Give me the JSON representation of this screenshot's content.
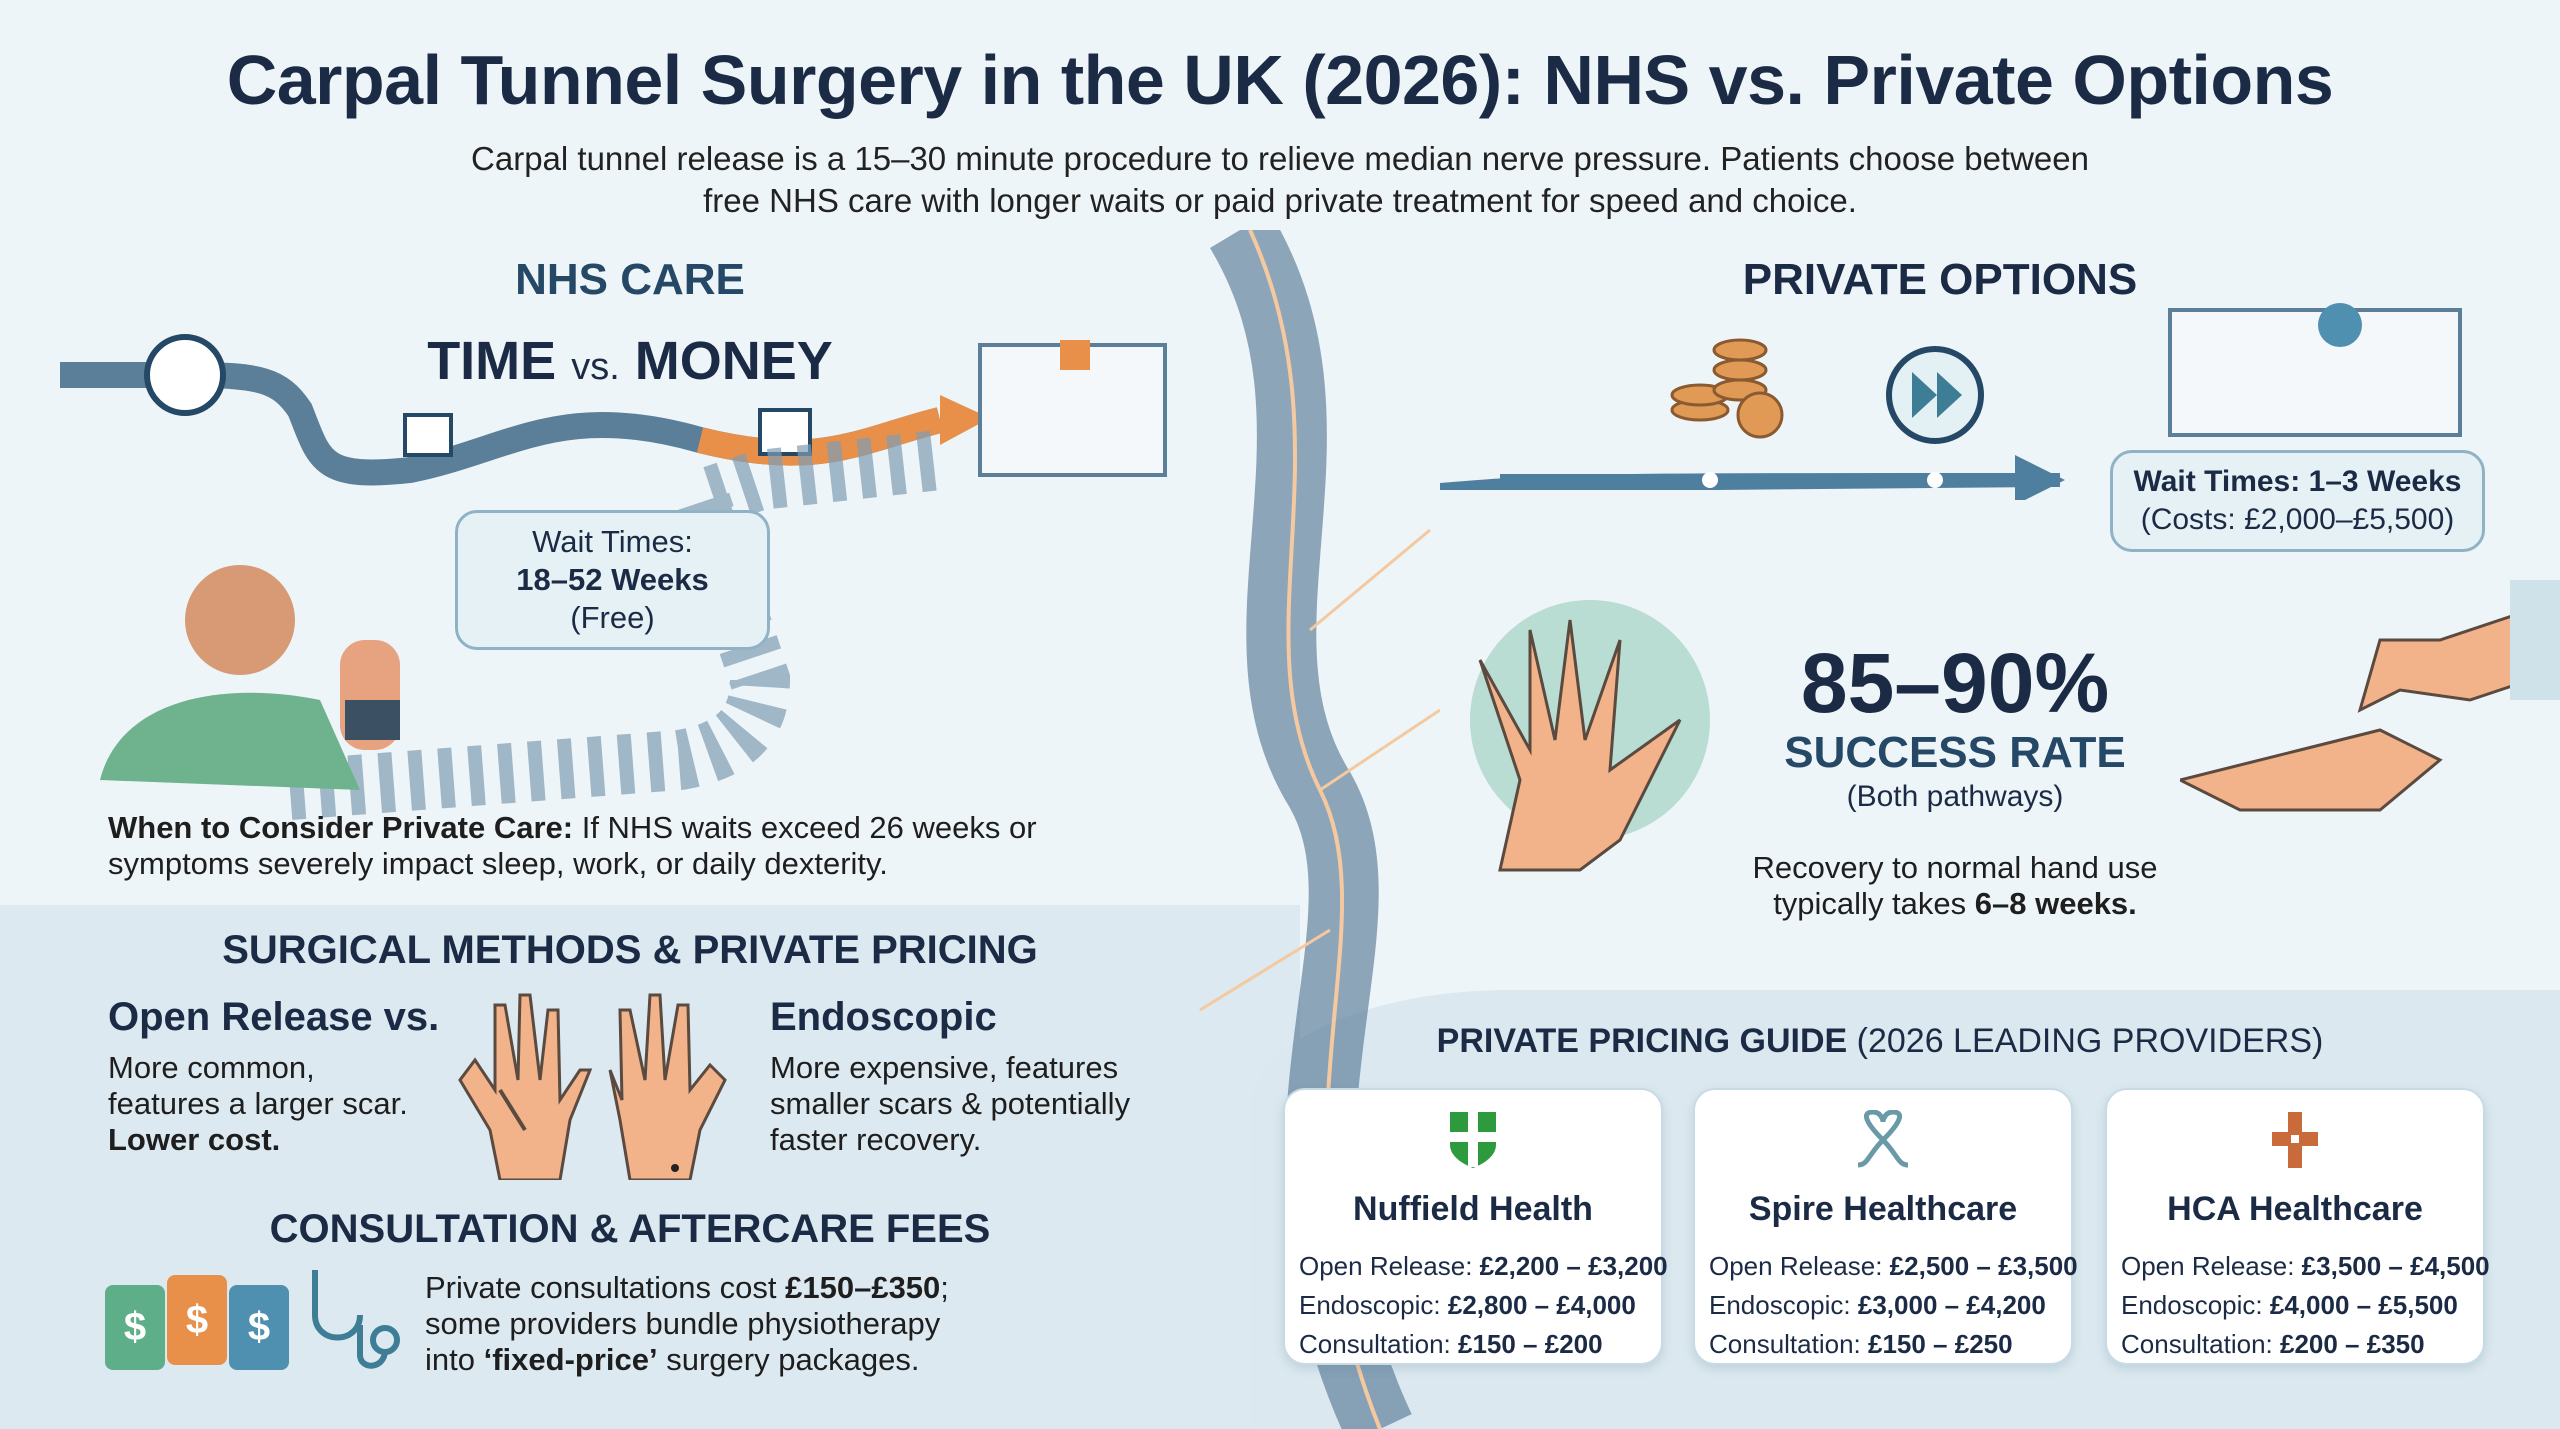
{
  "title": "Carpal Tunnel Surgery in the UK (2026): NHS vs. Private Options",
  "subtitle": [
    "Carpal tunnel release is a 15–30 minute procedure to relieve median nerve pressure. Patients choose between",
    "free NHS care with longer waits or paid private treatment for speed and choice."
  ],
  "nhs": {
    "heading": "NHS CARE",
    "time": "TIME",
    "vs": "vs.",
    "money": "MONEY",
    "wait_label": "Wait Times:",
    "wait_value": "18–52 Weeks",
    "wait_note": "(Free)",
    "consider_label": "When to Consider Private Care:",
    "consider_text": " If NHS waits exceed 26 weeks or",
    "consider_text2": "symptoms severely impact sleep, work, or daily dexterity."
  },
  "private": {
    "heading": "PRIVATE OPTIONS",
    "wait": "Wait Times: 1–3 Weeks",
    "costs": "(Costs: £2,000–£5,500)",
    "success_pct": "85–90%",
    "success_label": "SUCCESS RATE",
    "success_note": "(Both pathways)",
    "recovery1": "Recovery to normal hand use",
    "recovery2a": "typically takes ",
    "recovery2b": "6–8 weeks."
  },
  "methods": {
    "heading": "SURGICAL METHODS & PRIVATE PRICING",
    "open_title": "Open Release vs.",
    "open_l1": "More common,",
    "open_l2": "features a larger scar.",
    "open_l3": "Lower cost.",
    "endo_title": "Endoscopic",
    "endo_l1": "More expensive, features",
    "endo_l2": "smaller scars & potentially",
    "endo_l3": "faster recovery."
  },
  "fees": {
    "heading": "CONSULTATION & AFTERCARE FEES",
    "l1a": "Private consultations cost ",
    "l1b": "£150–£350",
    "l1c": ";",
    "l2": "some providers bundle physiotherapy",
    "l3a": "into ",
    "l3b": "‘fixed-price’",
    "l3c": " surgery packages.",
    "tag_symbol": "$"
  },
  "pricing": {
    "heading_bold": "PRIVATE PRICING GUIDE",
    "heading_rest": " (2026 LEADING PROVIDERS)",
    "providers": [
      {
        "name": "Nuffield Health",
        "logo": "shield-cross",
        "color": "#2e9a3e",
        "rows": [
          [
            "Open Release: ",
            "£2,200 – £3,200"
          ],
          [
            "Endoscopic: ",
            "£2,800 – £4,000"
          ],
          [
            "Consultation: ",
            "£150 – £200"
          ]
        ]
      },
      {
        "name": "Spire Healthcare",
        "logo": "heart-knot",
        "color": "#6a9aa8",
        "rows": [
          [
            "Open Release: ",
            "£2,500 – £3,500"
          ],
          [
            "Endoscopic: ",
            "£3,000 – £4,200"
          ],
          [
            "Consultation: ",
            "£150 – £250"
          ]
        ]
      },
      {
        "name": "HCA Healthcare",
        "logo": "cross",
        "color": "#c96a3a",
        "rows": [
          [
            "Open Release: ",
            "£3,500 – £4,500"
          ],
          [
            "Endoscopic: ",
            "£4,000 – £5,500"
          ],
          [
            "Consultation: ",
            "£200 – £350"
          ]
        ]
      }
    ]
  },
  "colors": {
    "navy": "#1c2b45",
    "road": "#5b7f99",
    "orange": "#e8904a",
    "teal": "#3d7e96"
  }
}
